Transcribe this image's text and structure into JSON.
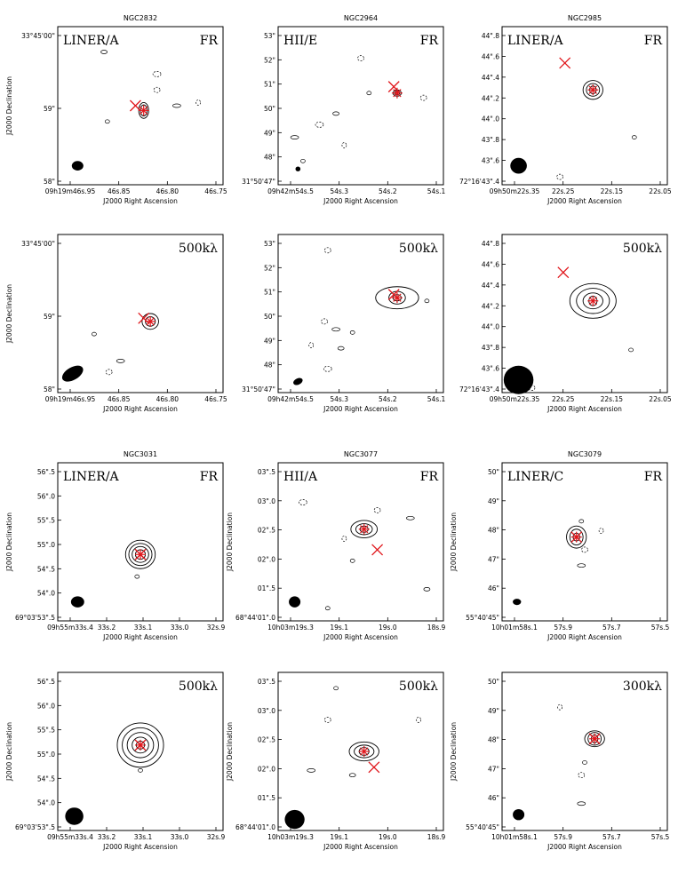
{
  "panels": [
    {
      "galaxy": "NGC2832",
      "class": "LINER/A",
      "tag": "FR",
      "yticks": [
        "33°45'00\"",
        "59\"",
        "58\""
      ],
      "xticks": [
        "09h19m46s.95",
        "46s.85",
        "46s.80",
        "46s.75"
      ],
      "ylabel": "J2000 Declination",
      "xlabel": "J2000 Right Ascension"
    },
    {
      "galaxy": "NGC2964",
      "class": "HII/E",
      "tag": "FR",
      "yticks": [
        "53\"",
        "52\"",
        "51\"",
        "50\"",
        "49\"",
        "48\"",
        "31°50'47\""
      ],
      "xticks": [
        "09h42m54s.5",
        "54s.3",
        "54s.2",
        "54s.1"
      ],
      "ylabel": "",
      "xlabel": "J2000 Right Ascension"
    },
    {
      "galaxy": "NGC2985",
      "class": "LINER/A",
      "tag": "FR",
      "yticks": [
        "44\".8",
        "44\".6",
        "44\".4",
        "44\".2",
        "44\".0",
        "43\".8",
        "43\".6",
        "72°16'43\".4"
      ],
      "xticks": [
        "09h50m22s.35",
        "22s.25",
        "22s.15",
        "22s.05"
      ],
      "ylabel": "",
      "xlabel": "J2000 Right Ascension"
    },
    {
      "galaxy": "",
      "class": "",
      "tag": "500kλ",
      "yticks": [
        "33°45'00\"",
        "59\"",
        "58\""
      ],
      "xticks": [
        "09h19m46s.95",
        "46s.85",
        "46s.80",
        "46s.75"
      ],
      "ylabel": "J2000 Declination",
      "xlabel": "J2000 Right Ascension"
    },
    {
      "galaxy": "",
      "class": "",
      "tag": "500kλ",
      "yticks": [
        "53\"",
        "52\"",
        "51\"",
        "50\"",
        "49\"",
        "48\"",
        "31°50'47\""
      ],
      "xticks": [
        "09h42m54s.5",
        "54s.3",
        "54s.2",
        "54s.1"
      ],
      "ylabel": "",
      "xlabel": "J2000 Right Ascension"
    },
    {
      "galaxy": "",
      "class": "",
      "tag": "500kλ",
      "yticks": [
        "44\".8",
        "44\".6",
        "44\".4",
        "44\".2",
        "44\".0",
        "43\".8",
        "43\".6",
        "72°16'43\".4"
      ],
      "xticks": [
        "09h50m22s.35",
        "22s.25",
        "22s.15",
        "22s.05"
      ],
      "ylabel": "",
      "xlabel": "J2000 Right Ascension"
    },
    {
      "galaxy": "NGC3031",
      "class": "LINER/A",
      "tag": "FR",
      "yticks": [
        "56\".5",
        "56\".0",
        "55\".5",
        "55\".0",
        "54\".5",
        "54\".0",
        "69°03'53\".5"
      ],
      "xticks": [
        "09h55m33s.4",
        "33s.2",
        "33s.1",
        "33s.0",
        "32s.9"
      ],
      "ylabel": "J2000 Declination",
      "xlabel": "J2000 Right Ascension"
    },
    {
      "galaxy": "NGC3077",
      "class": "HII/A",
      "tag": "FR",
      "yticks": [
        "03\".5",
        "03\".0",
        "02\".5",
        "02\".0",
        "01\".5",
        "68°44'01\".0"
      ],
      "xticks": [
        "10h03m19s.3",
        "19s.1",
        "19s.0",
        "18s.9"
      ],
      "ylabel": "J2000 Declination",
      "xlabel": "J2000 Right Ascension"
    },
    {
      "galaxy": "NGC3079",
      "class": "LINER/C",
      "tag": "FR",
      "yticks": [
        "50\"",
        "49\"",
        "48\"",
        "47\"",
        "46\"",
        "55°40'45\""
      ],
      "xticks": [
        "10h01m58s.1",
        "57s.9",
        "57s.7",
        "57s.5"
      ],
      "ylabel": "J2000 Declination",
      "xlabel": "J2000 Right Ascension"
    },
    {
      "galaxy": "",
      "class": "",
      "tag": "500kλ",
      "yticks": [
        "56\".5",
        "56\".0",
        "55\".5",
        "55\".0",
        "54\".5",
        "54\".0",
        "69°03'53\".5"
      ],
      "xticks": [
        "09h55m33s.4",
        "33s.2",
        "33s.1",
        "33s.0",
        "32s.9"
      ],
      "ylabel": "J2000 Declination",
      "xlabel": "J2000 Right Ascension"
    },
    {
      "galaxy": "",
      "class": "",
      "tag": "500kλ",
      "yticks": [
        "03\".5",
        "03\".0",
        "02\".5",
        "02\".0",
        "01\".5",
        "68°44'01\".0"
      ],
      "xticks": [
        "10h03m19s.3",
        "19s.1",
        "19s.0",
        "18s.9"
      ],
      "ylabel": "J2000 Declination",
      "xlabel": "J2000 Right Ascension"
    },
    {
      "galaxy": "",
      "class": "",
      "tag": "300kλ",
      "yticks": [
        "50\"",
        "49\"",
        "48\"",
        "47\"",
        "46\"",
        "55°40'45\""
      ],
      "xticks": [
        "10h01m58s.1",
        "57s.9",
        "57s.7",
        "57s.5"
      ],
      "ylabel": "J2000 Declination",
      "xlabel": "J2000 Right Ascension"
    }
  ],
  "colors": {
    "marker": "#e0161b",
    "contour": "#000000",
    "frame": "#000000"
  }
}
